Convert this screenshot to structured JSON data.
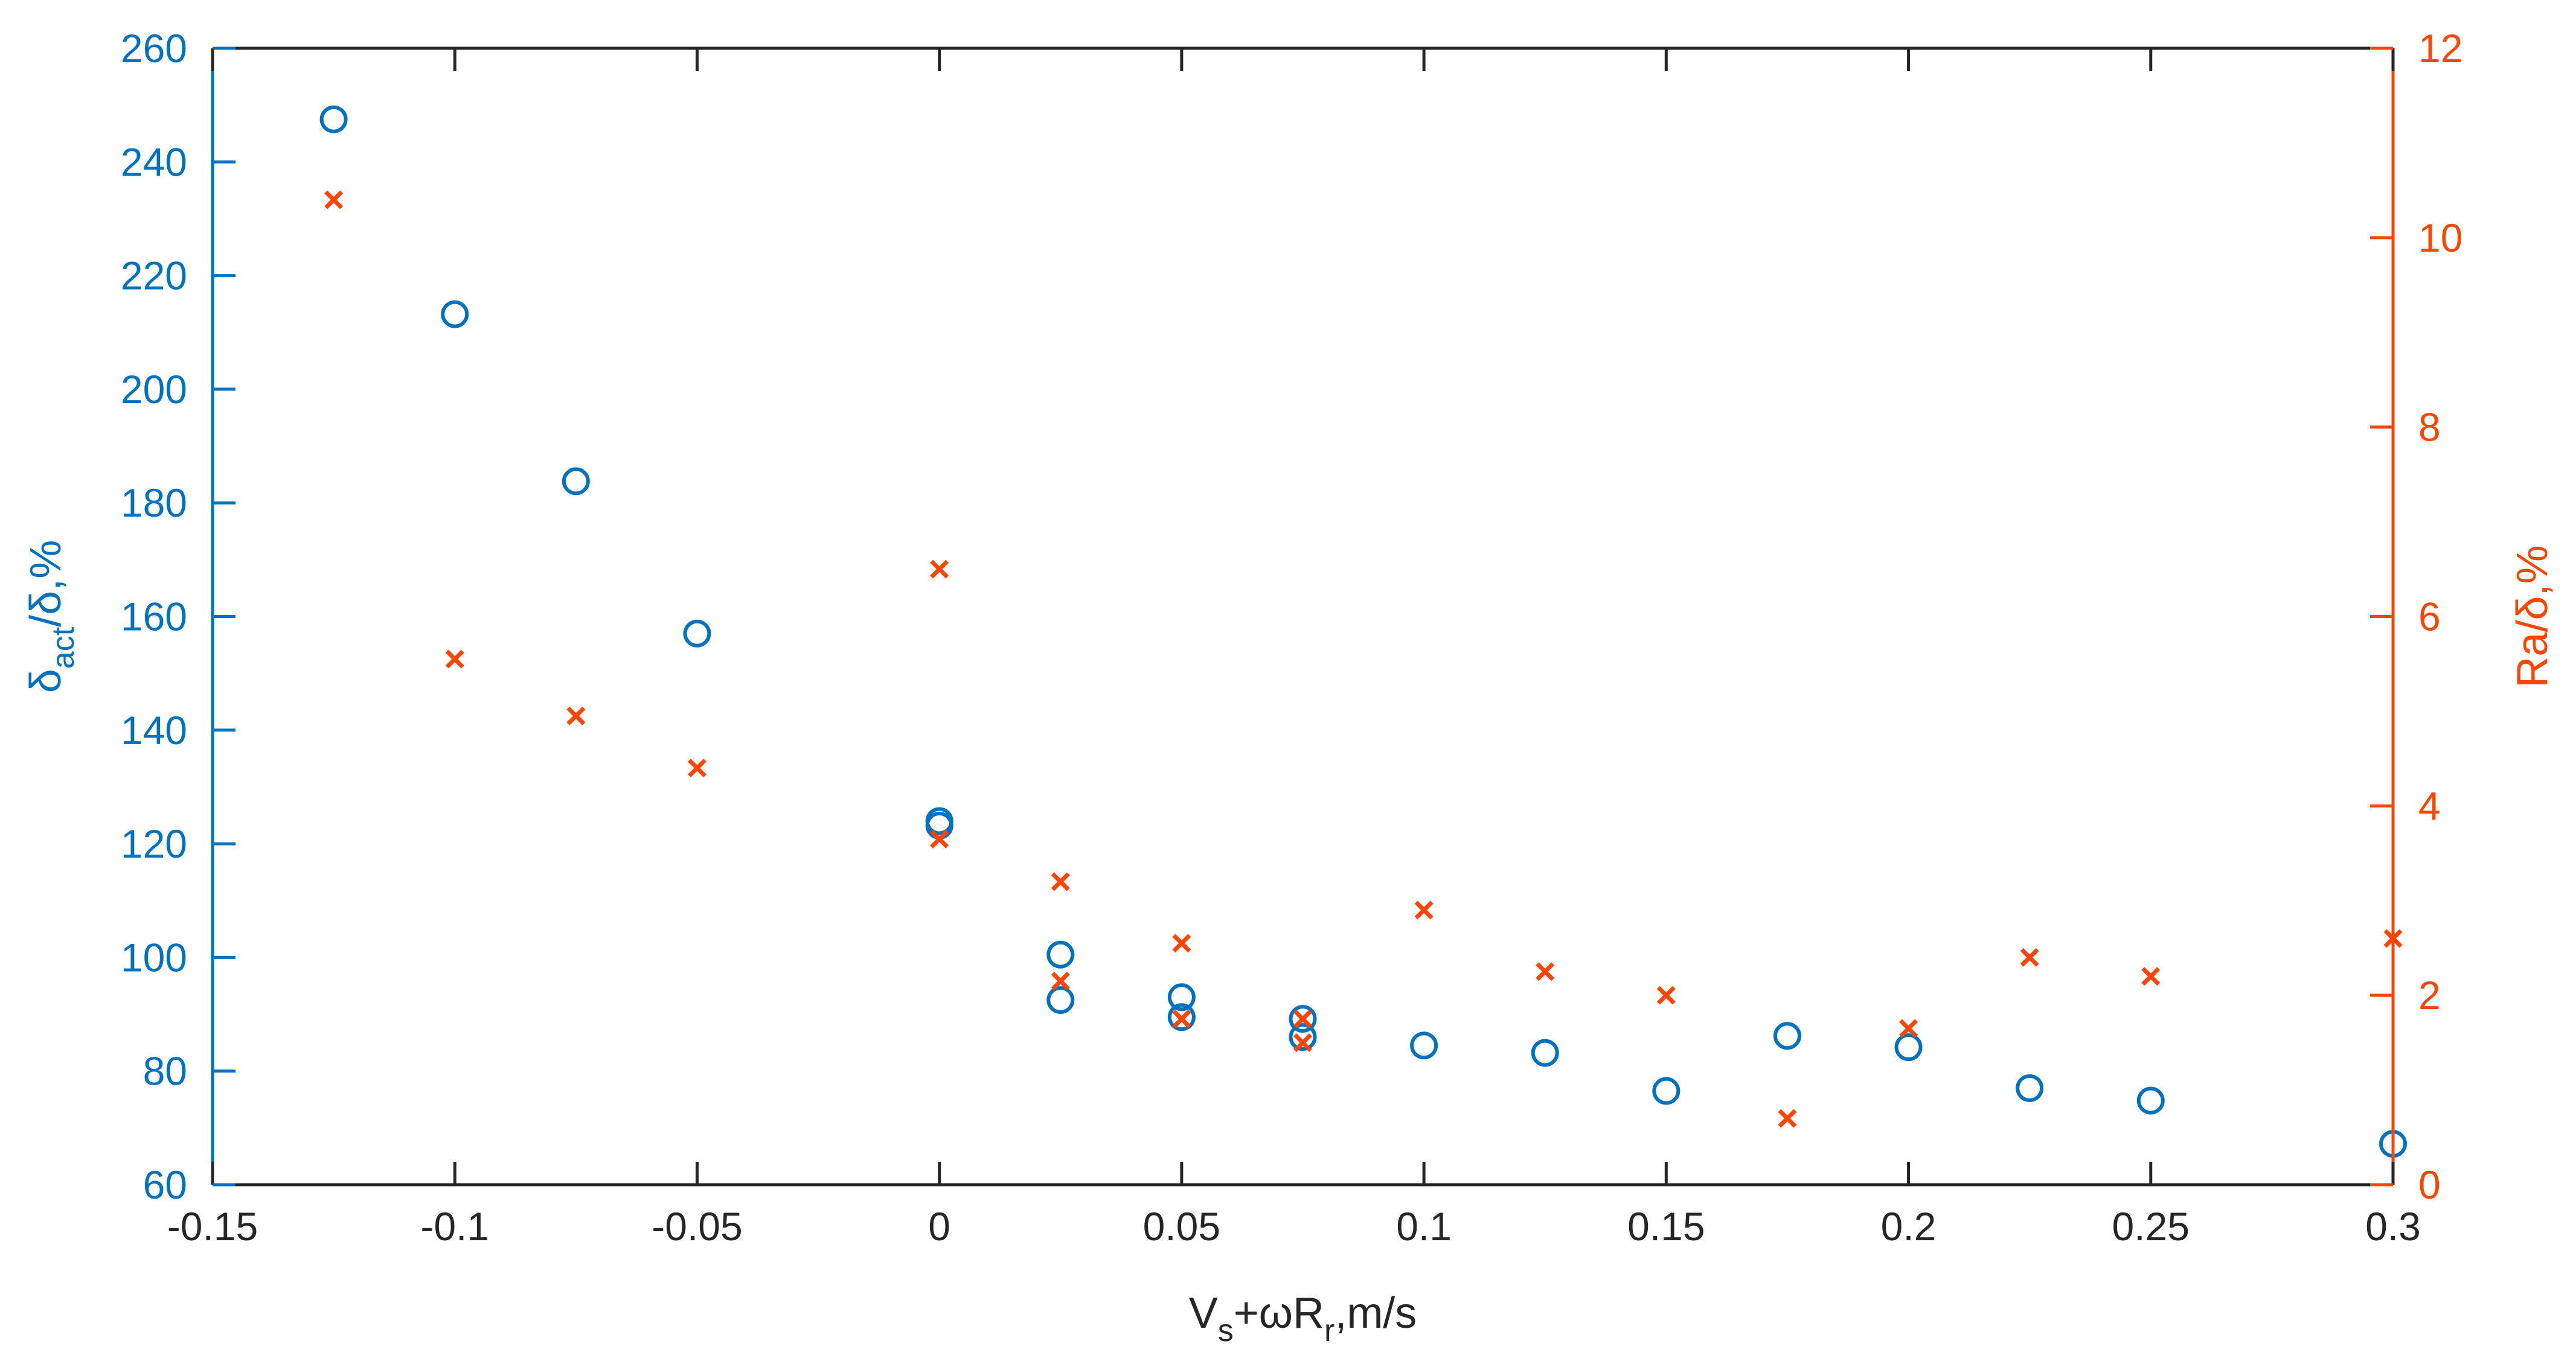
{
  "chart_data": {
    "type": "scatter",
    "x_axis": {
      "label": {
        "main": "V",
        "sub1": "s",
        "mid": "+ωR",
        "sub2": "r",
        "end": ",m/s"
      },
      "range": [
        -0.15,
        0.3
      ],
      "ticks": [
        -0.15,
        -0.1,
        -0.05,
        0,
        0.05,
        0.1,
        0.15,
        0.2,
        0.25,
        0.3
      ],
      "tick_labels": [
        "-0.15",
        "-0.1",
        "-0.05",
        "0",
        "0.05",
        "0.1",
        "0.15",
        "0.2",
        "0.25",
        "0.3"
      ]
    },
    "y_left": {
      "label": {
        "main": "δ",
        "sub": "act",
        "end": "/δ,%"
      },
      "range": [
        60,
        260
      ],
      "ticks": [
        60,
        80,
        100,
        120,
        140,
        160,
        180,
        200,
        220,
        240,
        260
      ],
      "color": "#0072BD"
    },
    "y_right": {
      "label": "Ra/δ,%",
      "range": [
        0,
        12
      ],
      "ticks": [
        0,
        2,
        4,
        6,
        8,
        10,
        12
      ],
      "color": "#FF4500"
    },
    "series": [
      {
        "axis": "left",
        "marker": "circle",
        "color": "#0072BD",
        "points": [
          [
            -0.125,
            247.5
          ],
          [
            -0.1,
            213.2
          ],
          [
            -0.075,
            183.8
          ],
          [
            -0.05,
            157.0
          ],
          [
            0.0,
            124.0
          ],
          [
            0.0,
            123.2
          ],
          [
            0.025,
            100.5
          ],
          [
            0.025,
            92.5
          ],
          [
            0.05,
            93.0
          ],
          [
            0.05,
            89.5
          ],
          [
            0.075,
            89.2
          ],
          [
            0.075,
            86.0
          ],
          [
            0.1,
            84.5
          ],
          [
            0.125,
            83.2
          ],
          [
            0.15,
            76.5
          ],
          [
            0.175,
            86.2
          ],
          [
            0.2,
            84.2
          ],
          [
            0.225,
            77.0
          ],
          [
            0.25,
            74.8
          ],
          [
            0.3,
            67.2
          ]
        ]
      },
      {
        "axis": "right",
        "marker": "x",
        "color": "#FF4500",
        "points": [
          [
            -0.125,
            10.4
          ],
          [
            -0.1,
            5.55
          ],
          [
            -0.075,
            4.95
          ],
          [
            -0.05,
            4.4
          ],
          [
            0.0,
            6.5
          ],
          [
            0.0,
            3.65
          ],
          [
            0.025,
            3.2
          ],
          [
            0.025,
            2.15
          ],
          [
            0.05,
            2.55
          ],
          [
            0.05,
            1.75
          ],
          [
            0.075,
            1.75
          ],
          [
            0.075,
            1.5
          ],
          [
            0.1,
            2.9
          ],
          [
            0.125,
            2.25
          ],
          [
            0.15,
            2.0
          ],
          [
            0.175,
            0.7
          ],
          [
            0.2,
            1.65
          ],
          [
            0.225,
            2.4
          ],
          [
            0.25,
            2.2
          ],
          [
            0.3,
            2.6
          ]
        ]
      }
    ]
  }
}
